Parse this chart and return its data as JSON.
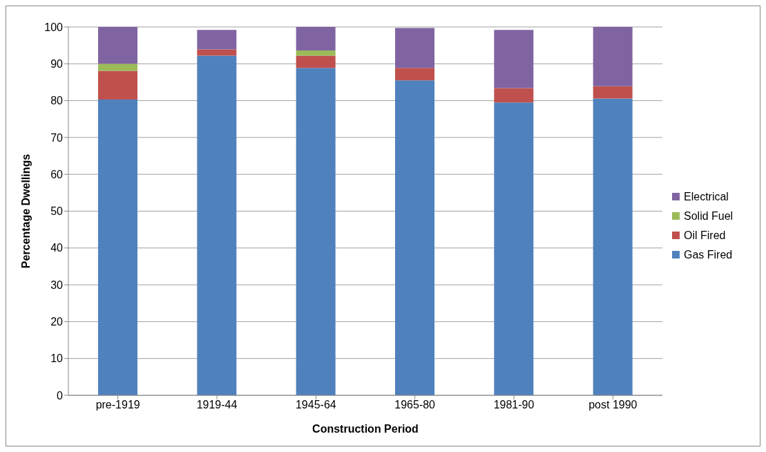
{
  "chart_data": {
    "type": "bar",
    "stacked": true,
    "xlabel": "Construction Period",
    "ylabel": "Percentage Dwellings",
    "categories": [
      "pre-1919",
      "1919-44",
      "1945-64",
      "1965-80",
      "1981-90",
      "post 1990"
    ],
    "series": [
      {
        "name": "Gas Fired",
        "color": "#4f81bd",
        "values": [
          80.3,
          92.2,
          88.9,
          85.5,
          79.5,
          80.6
        ]
      },
      {
        "name": "Oil Fired",
        "color": "#c0504d",
        "values": [
          7.8,
          1.7,
          3.3,
          3.4,
          3.9,
          3.3
        ]
      },
      {
        "name": "Solid Fuel",
        "color": "#9bbb59",
        "values": [
          1.9,
          0,
          1.4,
          0,
          0,
          0
        ]
      },
      {
        "name": "Electrical",
        "color": "#8064a2",
        "values": [
          10,
          5.3,
          6.4,
          10.8,
          15.8,
          16.1
        ]
      }
    ],
    "ylim": [
      0,
      100
    ],
    "yticks": [
      0,
      10,
      20,
      30,
      40,
      50,
      60,
      70,
      80,
      90,
      100
    ],
    "grid": "y",
    "legend": "right"
  }
}
